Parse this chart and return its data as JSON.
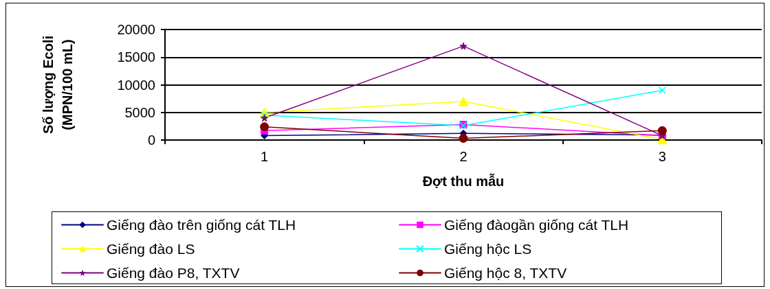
{
  "chart_data": {
    "type": "line",
    "xlabel": "Đợt thu mẫu",
    "ylabel": "Số lượng Ecoli\n(MPN/100 mL)",
    "categories": [
      "1",
      "2",
      "3"
    ],
    "ylim": [
      0,
      20000
    ],
    "yticks": [
      0,
      5000,
      10000,
      15000,
      20000
    ],
    "grid": "y",
    "legend": "bottom",
    "series": [
      {
        "name": "Giếng đào trên giống cát TLH",
        "color": "#000080",
        "marker": "diamond",
        "values": [
          800,
          1200,
          900
        ]
      },
      {
        "name": "Giếng đàogần giống cát TLH",
        "color": "#ff00ff",
        "marker": "square",
        "values": [
          1700,
          2800,
          800
        ]
      },
      {
        "name": "Giếng đào LS",
        "color": "#ffff00",
        "marker": "triangle",
        "values": [
          5000,
          7000,
          100
        ]
      },
      {
        "name": "Giếng hộc LS",
        "color": "#00ffff",
        "marker": "cross",
        "values": [
          4500,
          2600,
          9000
        ]
      },
      {
        "name": "Giếng đào P8, TXTV",
        "color": "#800080",
        "marker": "star",
        "values": [
          4000,
          17000,
          800
        ]
      },
      {
        "name": "Giếng hộc 8, TXTV",
        "color": "#800000",
        "marker": "circle",
        "values": [
          2400,
          300,
          1700
        ]
      }
    ]
  }
}
